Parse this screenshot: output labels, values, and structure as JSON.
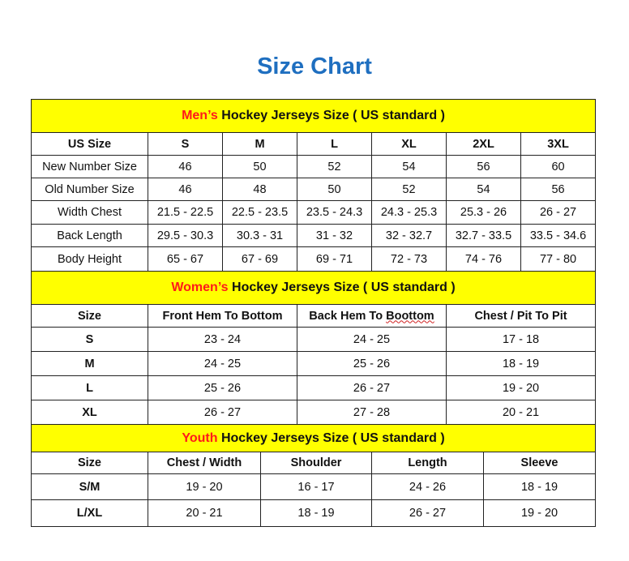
{
  "title": "Size Chart",
  "colors": {
    "title": "#1f6fc0",
    "band": "#ffff00",
    "accent": "#ff1a1a"
  },
  "sections": [
    {
      "key": "men",
      "band_red": "Men’s",
      "band_rest": " Hockey Jerseys Size ( US standard )",
      "header": [
        "US Size",
        "S",
        "M",
        "L",
        "XL",
        "2XL",
        "3XL"
      ],
      "rows": [
        [
          "New Number Size",
          "46",
          "50",
          "52",
          "54",
          "56",
          "60"
        ],
        [
          "Old Number Size",
          "46",
          "48",
          "50",
          "52",
          "54",
          "56"
        ],
        [
          "Width Chest",
          "21.5 - 22.5",
          "22.5 - 23.5",
          "23.5 - 24.3",
          "24.3 - 25.3",
          "25.3 - 26",
          "26 - 27"
        ],
        [
          "Back Length",
          "29.5 - 30.3",
          "30.3 - 31",
          "31 - 32",
          "32 - 32.7",
          "32.7 - 33.5",
          "33.5 - 34.6"
        ],
        [
          "Body Height",
          "65 - 67",
          "67 - 69",
          "69 - 71",
          "72 - 73",
          "74 - 76",
          "77 - 80"
        ]
      ]
    },
    {
      "key": "women",
      "band_red": "Women’s",
      "band_rest": " Hockey Jerseys Size ( US standard )",
      "header": [
        "Size",
        "Front Hem To Bottom",
        "Back Hem To Boottom",
        "Chest / Pit To Pit"
      ],
      "rows": [
        [
          "S",
          "23 - 24",
          "24 - 25",
          "17 - 18"
        ],
        [
          "M",
          "24 - 25",
          "25 - 26",
          "18 - 19"
        ],
        [
          "L",
          "25 - 26",
          "26 - 27",
          "19 - 20"
        ],
        [
          "XL",
          "26 - 27",
          "27 - 28",
          "20 - 21"
        ]
      ]
    },
    {
      "key": "youth",
      "band_red": "Youth",
      "band_rest": " Hockey Jerseys Size ( US standard )",
      "header": [
        "Size",
        "Chest / Width",
        "Shoulder",
        "Length",
        "Sleeve"
      ],
      "rows": [
        [
          "S/M",
          "19 - 20",
          "16 - 17",
          "24 - 26",
          "18 - 19"
        ],
        [
          "L/XL",
          "20 - 21",
          "18 - 19",
          "26 - 27",
          "19 - 20"
        ]
      ]
    }
  ]
}
